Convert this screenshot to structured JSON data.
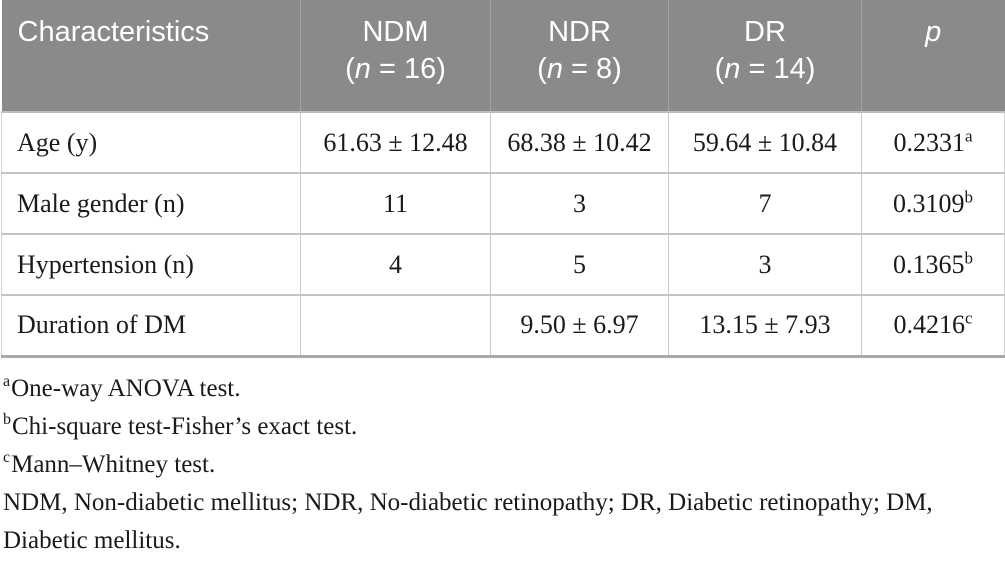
{
  "table": {
    "columns": [
      {
        "name": "Characteristics",
        "n": ""
      },
      {
        "name": "NDM",
        "n": "16"
      },
      {
        "name": "NDR",
        "n": "8"
      },
      {
        "name": "DR",
        "n": "14"
      },
      {
        "name": "p",
        "n": ""
      }
    ],
    "rows": [
      {
        "label": "Age (y)",
        "ndm": "61.63 ± 12.48",
        "ndr": "68.38 ± 10.42",
        "dr": "59.64 ± 10.84",
        "p": "0.2331",
        "p_sup": "a"
      },
      {
        "label": "Male gender (n)",
        "ndm": "11",
        "ndr": "3",
        "dr": "7",
        "p": "0.3109",
        "p_sup": "b"
      },
      {
        "label": "Hypertension (n)",
        "ndm": "4",
        "ndr": "5",
        "dr": "3",
        "p": "0.1365",
        "p_sup": "b"
      },
      {
        "label": "Duration of DM",
        "ndm": "",
        "ndr": "9.50 ± 6.97",
        "dr": "13.15 ± 7.93",
        "p": "0.4216",
        "p_sup": "c"
      }
    ]
  },
  "footnotes": [
    {
      "sup": "a",
      "text": "One-way ANOVA test."
    },
    {
      "sup": "b",
      "text": "Chi-square test-Fisher’s exact test."
    },
    {
      "sup": "c",
      "text": "Mann–Whitney test."
    },
    {
      "sup": "",
      "text": "NDM, Non-diabetic mellitus; NDR, No-diabetic retinopathy; DR, Diabetic retinopathy; DM, Diabetic mellitus."
    }
  ],
  "colors": {
    "header_bg": "#8a8a8a",
    "header_text": "#ffffff",
    "grid_line": "#c9c9c9",
    "table_bottom_rule": "#a9a9a9"
  }
}
